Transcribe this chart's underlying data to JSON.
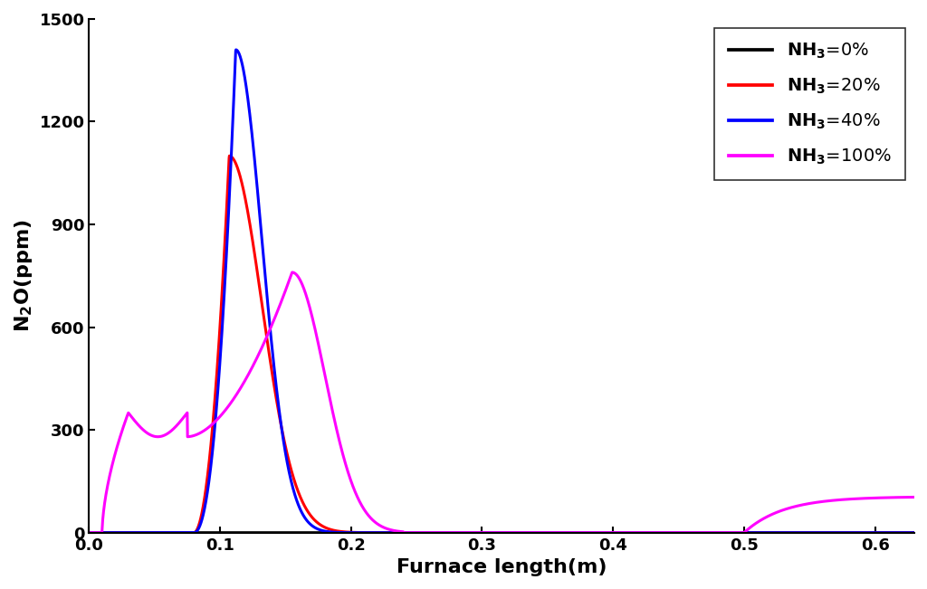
{
  "xlabel": "Furnace length(m)",
  "ylabel": "N$_2$O(ppm)",
  "xlim": [
    0.0,
    0.63
  ],
  "ylim": [
    0,
    1500
  ],
  "yticks": [
    0,
    300,
    600,
    900,
    1200,
    1500
  ],
  "xticks": [
    0.0,
    0.1,
    0.2,
    0.3,
    0.4,
    0.5,
    0.6
  ],
  "legend_labels": [
    "NH$_3$=0%",
    "NH$_3$=20%",
    "NH$_3$=40%",
    "NH$_3$=100%"
  ],
  "colors": [
    "black",
    "red",
    "blue",
    "magenta"
  ],
  "linewidth": 2.2,
  "background_color": "#ffffff"
}
